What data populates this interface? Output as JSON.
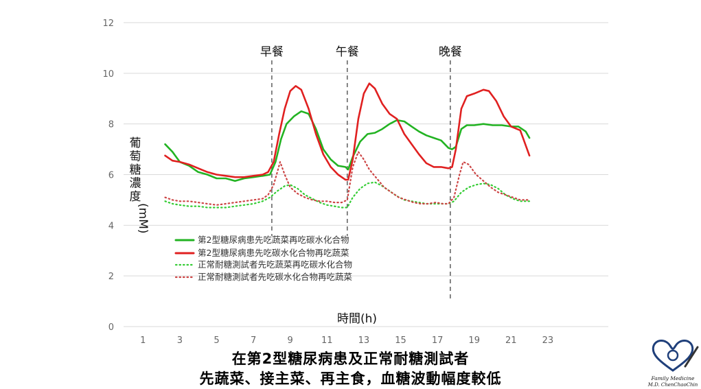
{
  "chart_data": {
    "type": "line",
    "xlabel": "時間(h)",
    "ylabel": "葡萄糖濃度(mM)",
    "xlim": [
      0,
      24
    ],
    "ylim": [
      0,
      12
    ],
    "xticks": [
      1,
      3,
      5,
      7,
      9,
      11,
      13,
      15,
      17,
      19,
      21,
      23
    ],
    "yticks": [
      0,
      2,
      4,
      6,
      8,
      10,
      12
    ],
    "grid": "horizontal",
    "legend": "lower-left",
    "meals": [
      {
        "label": "早餐",
        "x": 8.0
      },
      {
        "label": "午餐",
        "x": 12.1
      },
      {
        "label": "晚餐",
        "x": 17.7
      }
    ],
    "series": [
      {
        "name": "第2型糖尿病患先吃蔬菜再吃碳水化合物",
        "color": "#22b322",
        "style": "solid",
        "points": [
          [
            2.2,
            7.2
          ],
          [
            2.6,
            6.9
          ],
          [
            3.0,
            6.5
          ],
          [
            3.5,
            6.35
          ],
          [
            4.0,
            6.1
          ],
          [
            4.5,
            6.0
          ],
          [
            5.0,
            5.85
          ],
          [
            5.5,
            5.85
          ],
          [
            6.0,
            5.75
          ],
          [
            6.5,
            5.85
          ],
          [
            7.0,
            5.9
          ],
          [
            7.5,
            5.95
          ],
          [
            7.9,
            6.0
          ],
          [
            8.2,
            6.5
          ],
          [
            8.5,
            7.4
          ],
          [
            8.8,
            8.0
          ],
          [
            9.2,
            8.3
          ],
          [
            9.6,
            8.5
          ],
          [
            10.0,
            8.4
          ],
          [
            10.4,
            7.8
          ],
          [
            10.8,
            7.0
          ],
          [
            11.2,
            6.6
          ],
          [
            11.6,
            6.35
          ],
          [
            12.0,
            6.3
          ],
          [
            12.15,
            6.2
          ],
          [
            12.4,
            6.7
          ],
          [
            12.8,
            7.3
          ],
          [
            13.2,
            7.6
          ],
          [
            13.6,
            7.65
          ],
          [
            14.0,
            7.8
          ],
          [
            14.4,
            8.0
          ],
          [
            14.8,
            8.15
          ],
          [
            15.2,
            8.1
          ],
          [
            15.6,
            7.9
          ],
          [
            16.0,
            7.7
          ],
          [
            16.4,
            7.55
          ],
          [
            16.8,
            7.45
          ],
          [
            17.2,
            7.35
          ],
          [
            17.6,
            7.05
          ],
          [
            17.8,
            7.0
          ],
          [
            18.0,
            7.1
          ],
          [
            18.3,
            7.8
          ],
          [
            18.6,
            7.95
          ],
          [
            19.0,
            7.95
          ],
          [
            19.5,
            8.0
          ],
          [
            20.0,
            7.95
          ],
          [
            20.5,
            7.95
          ],
          [
            21.0,
            7.9
          ],
          [
            21.4,
            7.9
          ],
          [
            21.8,
            7.7
          ],
          [
            22.0,
            7.45
          ]
        ]
      },
      {
        "name": "第2型糖尿病患先吃碳水化合物再吃蔬菜",
        "color": "#e02020",
        "style": "solid",
        "points": [
          [
            2.2,
            6.75
          ],
          [
            2.6,
            6.55
          ],
          [
            3.0,
            6.5
          ],
          [
            3.5,
            6.4
          ],
          [
            4.0,
            6.25
          ],
          [
            4.5,
            6.1
          ],
          [
            5.0,
            6.0
          ],
          [
            5.5,
            5.95
          ],
          [
            6.0,
            5.9
          ],
          [
            6.5,
            5.9
          ],
          [
            7.0,
            5.95
          ],
          [
            7.5,
            6.0
          ],
          [
            7.8,
            6.1
          ],
          [
            8.1,
            6.5
          ],
          [
            8.4,
            7.6
          ],
          [
            8.7,
            8.6
          ],
          [
            9.0,
            9.3
          ],
          [
            9.3,
            9.5
          ],
          [
            9.6,
            9.35
          ],
          [
            10.0,
            8.6
          ],
          [
            10.4,
            7.6
          ],
          [
            10.8,
            6.8
          ],
          [
            11.2,
            6.3
          ],
          [
            11.6,
            6.0
          ],
          [
            12.0,
            5.8
          ],
          [
            12.15,
            5.8
          ],
          [
            12.4,
            6.6
          ],
          [
            12.7,
            8.2
          ],
          [
            13.0,
            9.2
          ],
          [
            13.3,
            9.6
          ],
          [
            13.6,
            9.4
          ],
          [
            14.0,
            8.8
          ],
          [
            14.4,
            8.4
          ],
          [
            14.8,
            8.2
          ],
          [
            15.2,
            7.6
          ],
          [
            15.6,
            7.2
          ],
          [
            16.0,
            6.8
          ],
          [
            16.4,
            6.45
          ],
          [
            16.8,
            6.3
          ],
          [
            17.2,
            6.3
          ],
          [
            17.6,
            6.25
          ],
          [
            17.8,
            6.3
          ],
          [
            18.0,
            7.0
          ],
          [
            18.3,
            8.6
          ],
          [
            18.6,
            9.1
          ],
          [
            19.0,
            9.2
          ],
          [
            19.5,
            9.35
          ],
          [
            19.8,
            9.3
          ],
          [
            20.2,
            8.9
          ],
          [
            20.6,
            8.3
          ],
          [
            21.0,
            7.9
          ],
          [
            21.5,
            7.75
          ],
          [
            22.0,
            6.75
          ]
        ]
      },
      {
        "name": "正常耐糖測試者先吃蔬菜再吃碳水化合物",
        "color": "#33cc33",
        "style": "dotted",
        "points": [
          [
            2.2,
            4.95
          ],
          [
            2.6,
            4.85
          ],
          [
            3.0,
            4.8
          ],
          [
            3.5,
            4.75
          ],
          [
            4.0,
            4.75
          ],
          [
            4.5,
            4.7
          ],
          [
            5.0,
            4.7
          ],
          [
            5.5,
            4.7
          ],
          [
            6.0,
            4.75
          ],
          [
            6.5,
            4.8
          ],
          [
            7.0,
            4.85
          ],
          [
            7.5,
            4.95
          ],
          [
            7.9,
            5.1
          ],
          [
            8.3,
            5.35
          ],
          [
            8.7,
            5.55
          ],
          [
            9.0,
            5.6
          ],
          [
            9.4,
            5.45
          ],
          [
            9.8,
            5.2
          ],
          [
            10.2,
            5.05
          ],
          [
            10.6,
            4.9
          ],
          [
            11.0,
            4.8
          ],
          [
            11.4,
            4.75
          ],
          [
            11.8,
            4.7
          ],
          [
            12.1,
            4.7
          ],
          [
            12.4,
            5.1
          ],
          [
            12.8,
            5.45
          ],
          [
            13.2,
            5.65
          ],
          [
            13.6,
            5.7
          ],
          [
            14.0,
            5.55
          ],
          [
            14.4,
            5.35
          ],
          [
            14.8,
            5.15
          ],
          [
            15.2,
            5.0
          ],
          [
            15.6,
            4.95
          ],
          [
            16.0,
            4.9
          ],
          [
            16.4,
            4.85
          ],
          [
            16.8,
            4.85
          ],
          [
            17.2,
            4.85
          ],
          [
            17.6,
            4.85
          ],
          [
            17.9,
            4.95
          ],
          [
            18.3,
            5.3
          ],
          [
            18.7,
            5.5
          ],
          [
            19.1,
            5.6
          ],
          [
            19.5,
            5.65
          ],
          [
            19.9,
            5.6
          ],
          [
            20.3,
            5.45
          ],
          [
            20.7,
            5.2
          ],
          [
            21.1,
            5.05
          ],
          [
            21.5,
            4.95
          ],
          [
            22.0,
            4.95
          ]
        ]
      },
      {
        "name": "正常耐糖測試者先吃碳水化合物再吃蔬菜",
        "color": "#cc4444",
        "style": "dotted",
        "points": [
          [
            2.2,
            5.1
          ],
          [
            2.6,
            5.0
          ],
          [
            3.0,
            4.95
          ],
          [
            3.5,
            4.95
          ],
          [
            4.0,
            4.9
          ],
          [
            4.5,
            4.85
          ],
          [
            5.0,
            4.8
          ],
          [
            5.5,
            4.85
          ],
          [
            6.0,
            4.9
          ],
          [
            6.5,
            4.95
          ],
          [
            7.0,
            5.0
          ],
          [
            7.5,
            5.05
          ],
          [
            7.8,
            5.2
          ],
          [
            8.1,
            5.6
          ],
          [
            8.3,
            6.1
          ],
          [
            8.45,
            6.5
          ],
          [
            8.7,
            6.0
          ],
          [
            9.0,
            5.5
          ],
          [
            9.4,
            5.25
          ],
          [
            9.8,
            5.1
          ],
          [
            10.2,
            5.0
          ],
          [
            10.6,
            4.95
          ],
          [
            11.0,
            4.95
          ],
          [
            11.4,
            4.9
          ],
          [
            11.8,
            4.9
          ],
          [
            12.1,
            5.0
          ],
          [
            12.4,
            6.3
          ],
          [
            12.7,
            6.9
          ],
          [
            13.0,
            6.6
          ],
          [
            13.3,
            6.2
          ],
          [
            13.7,
            5.85
          ],
          [
            14.1,
            5.5
          ],
          [
            14.5,
            5.3
          ],
          [
            14.9,
            5.1
          ],
          [
            15.3,
            5.0
          ],
          [
            15.7,
            4.9
          ],
          [
            16.1,
            4.85
          ],
          [
            16.5,
            4.85
          ],
          [
            16.9,
            4.9
          ],
          [
            17.3,
            4.85
          ],
          [
            17.6,
            4.85
          ],
          [
            17.9,
            5.1
          ],
          [
            18.2,
            6.0
          ],
          [
            18.4,
            6.5
          ],
          [
            18.7,
            6.4
          ],
          [
            19.1,
            6.0
          ],
          [
            19.5,
            5.75
          ],
          [
            19.9,
            5.5
          ],
          [
            20.3,
            5.3
          ],
          [
            20.7,
            5.2
          ],
          [
            21.1,
            5.1
          ],
          [
            21.5,
            5.0
          ],
          [
            22.0,
            5.0
          ]
        ]
      }
    ]
  },
  "captions": {
    "line1": "在第2型糖尿病患及正常耐糖測試者",
    "line2": "先蔬菜、接主菜、再主食，血糖波動幅度較低"
  },
  "logo": {
    "text_line1": "Family Medicine",
    "text_line2": "M.D. ChenChaoChin",
    "color": "#1f3f7a"
  }
}
